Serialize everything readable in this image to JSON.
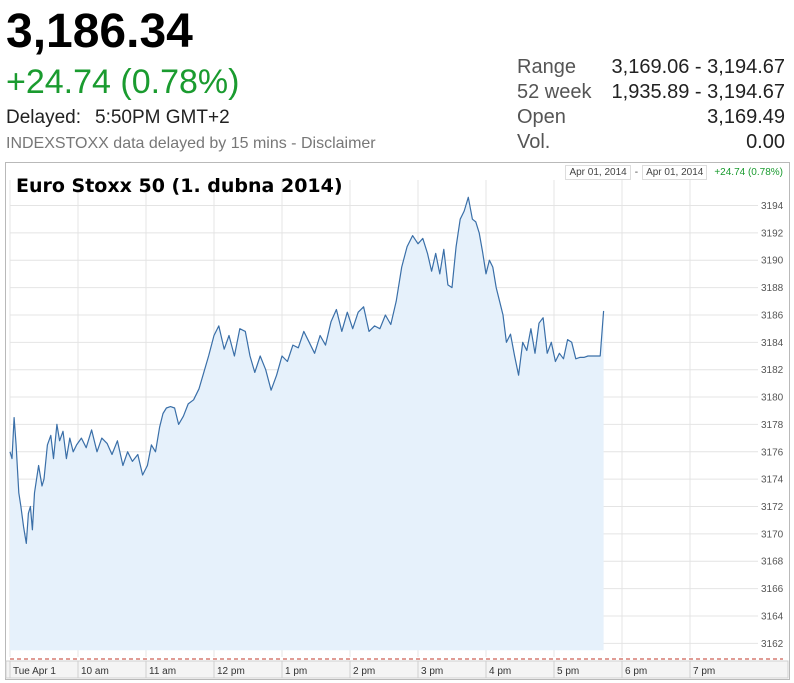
{
  "quote": {
    "price": "3,186.34",
    "change": "+24.74 (0.78%)",
    "delayed_label": "Delayed:",
    "delayed_time": "5:50PM GMT+2",
    "disclaimer": "INDEXSTOXX data delayed by 15 mins - Disclaimer"
  },
  "stats": [
    {
      "label": "Range",
      "value": "3,169.06 - 3,194.67"
    },
    {
      "label": "52 week",
      "value": "1,935.89 - 3,194.67"
    },
    {
      "label": "Open",
      "value": "3,169.49"
    },
    {
      "label": "Vol.",
      "value": "0.00"
    }
  ],
  "range_box": {
    "from": "Apr 01, 2014",
    "separator": "-",
    "to": "Apr 01, 2014",
    "change": "+24.74 (0.78%)"
  },
  "colors": {
    "line": "#3a6fa8",
    "fill": "#e6f1fb",
    "grid": "#e4e4e4",
    "positive": "#1a9b2f"
  },
  "chart_data": {
    "type": "area",
    "title": "Euro Stoxx 50 (1. dubna 2014)",
    "x_tick_labels": [
      "Tue Apr 1",
      "10 am",
      "11 am",
      "12 pm",
      "1 pm",
      "2 pm",
      "3 pm",
      "4 pm",
      "5 pm",
      "6 pm",
      "7 pm"
    ],
    "x_ticks_hours": [
      9,
      10,
      11,
      12,
      13,
      14,
      15,
      16,
      17,
      18,
      19
    ],
    "xlim_hours": [
      9,
      20
    ],
    "ylim": [
      3161,
      3195.5
    ],
    "y_ticks": [
      3162,
      3164,
      3166,
      3168,
      3170,
      3172,
      3174,
      3176,
      3178,
      3180,
      3182,
      3184,
      3186,
      3188,
      3190,
      3192,
      3194
    ],
    "grid": true,
    "baseline": 3161.5,
    "series": [
      {
        "x": [
          9.0,
          9.03,
          9.06,
          9.09,
          9.13,
          9.16,
          9.2,
          9.24,
          9.27,
          9.3,
          9.33,
          9.36,
          9.42,
          9.47,
          9.5,
          9.55,
          9.6,
          9.64,
          9.69,
          9.73,
          9.78,
          9.83,
          9.88,
          9.93,
          9.98,
          10.05,
          10.12,
          10.2,
          10.28,
          10.35,
          10.43,
          10.5,
          10.58,
          10.66,
          10.73,
          10.8,
          10.88,
          10.95,
          11.02,
          11.08,
          11.14,
          11.2,
          11.25,
          11.3,
          11.36,
          11.42,
          11.48,
          11.55,
          11.62,
          11.7,
          11.78,
          11.85,
          11.92,
          12.0,
          12.07,
          12.15,
          12.22,
          12.3,
          12.38,
          12.46,
          12.53,
          12.6,
          12.68,
          12.76,
          12.84,
          12.92,
          13.0,
          13.08,
          13.16,
          13.24,
          13.32,
          13.4,
          13.48,
          13.56,
          13.64,
          13.72,
          13.8,
          13.88,
          13.96,
          14.04,
          14.12,
          14.2,
          14.28,
          14.36,
          14.44,
          14.52,
          14.6,
          14.68,
          14.76,
          14.84,
          14.92,
          15.0,
          15.07,
          15.14,
          15.2,
          15.26,
          15.32,
          15.38,
          15.44,
          15.5,
          15.56,
          15.62,
          15.68,
          15.74,
          15.8,
          15.85,
          15.9,
          15.95,
          16.0,
          16.05,
          16.1,
          16.15,
          16.2,
          16.25,
          16.3,
          16.36,
          16.42,
          16.48,
          16.54,
          16.6,
          16.66,
          16.72,
          16.78,
          16.84,
          16.9,
          16.96,
          17.02,
          17.08,
          17.14,
          17.2,
          17.26,
          17.32,
          17.38,
          17.44,
          17.5,
          17.56,
          17.62,
          17.68,
          17.73
        ],
        "values": [
          3176.0,
          3175.5,
          3178.5,
          3176.5,
          3173.0,
          3172.0,
          3170.5,
          3169.3,
          3171.5,
          3172.0,
          3170.3,
          3173.0,
          3175.0,
          3173.5,
          3174.0,
          3176.5,
          3177.2,
          3175.5,
          3178.0,
          3176.8,
          3177.5,
          3175.5,
          3177.0,
          3176.0,
          3176.5,
          3177.0,
          3176.3,
          3177.6,
          3176.0,
          3177.0,
          3176.6,
          3175.8,
          3176.8,
          3175.0,
          3176.0,
          3175.3,
          3175.8,
          3174.3,
          3175.0,
          3176.5,
          3176.0,
          3177.8,
          3178.8,
          3179.2,
          3179.3,
          3179.2,
          3178.0,
          3178.6,
          3179.5,
          3179.8,
          3180.6,
          3181.8,
          3183.0,
          3184.5,
          3185.2,
          3183.5,
          3184.5,
          3183.0,
          3185.0,
          3184.8,
          3183.0,
          3181.8,
          3183.0,
          3182.0,
          3180.5,
          3181.6,
          3183.0,
          3182.6,
          3183.8,
          3183.6,
          3184.8,
          3184.0,
          3183.2,
          3184.5,
          3183.8,
          3185.5,
          3186.4,
          3184.8,
          3186.2,
          3185.0,
          3186.2,
          3186.6,
          3184.8,
          3185.2,
          3185.0,
          3186.0,
          3185.3,
          3187.0,
          3189.5,
          3191.0,
          3191.8,
          3191.2,
          3191.6,
          3190.5,
          3189.2,
          3190.5,
          3189.0,
          3190.8,
          3188.2,
          3188.0,
          3191.0,
          3193.0,
          3193.6,
          3194.6,
          3193.0,
          3192.8,
          3192.0,
          3190.6,
          3189.0,
          3190.0,
          3189.5,
          3188.0,
          3187.0,
          3186.0,
          3184.0,
          3184.6,
          3183.0,
          3181.6,
          3184.0,
          3183.4,
          3185.0,
          3183.2,
          3185.4,
          3185.8,
          3183.2,
          3184.0,
          3182.6,
          3183.2,
          3182.8,
          3184.2,
          3184.0,
          3182.8,
          3182.9,
          3182.9,
          3183.0,
          3183.0,
          3183.0,
          3183.0,
          3186.3
        ]
      }
    ]
  }
}
